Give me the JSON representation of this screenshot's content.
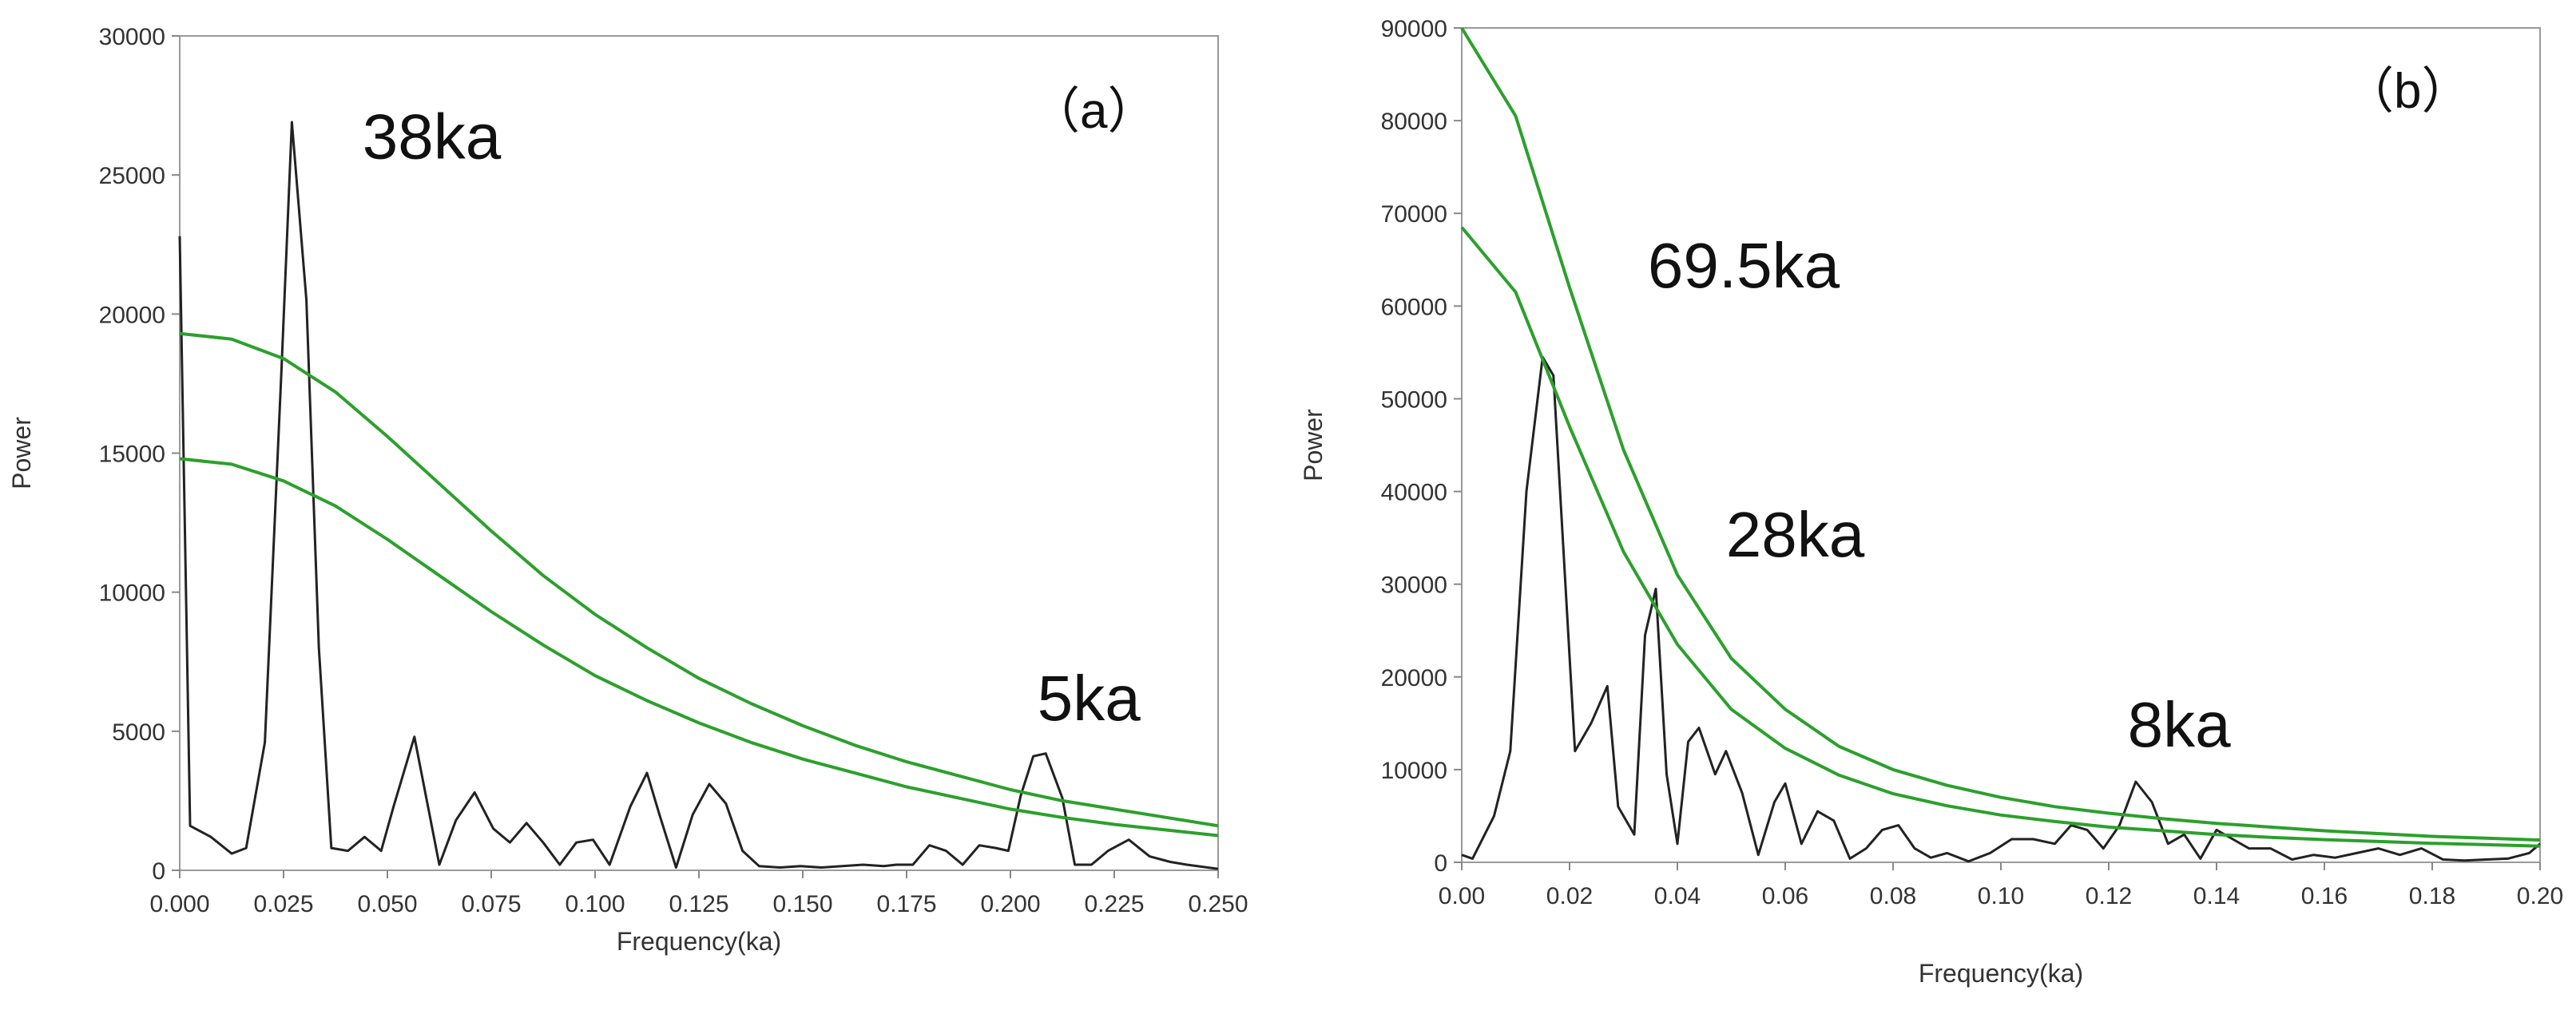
{
  "chart_data": [
    {
      "type": "line",
      "panel_label": "（a）",
      "xlabel": "Frequency(ka)",
      "ylabel": "Power",
      "xlim": [
        0,
        0.25
      ],
      "ylim": [
        0,
        30000
      ],
      "xticks": [
        "0.000",
        "0.025",
        "0.050",
        "0.075",
        "0.100",
        "0.125",
        "0.150",
        "0.175",
        "0.200",
        "0.225",
        "0.250"
      ],
      "yticks": [
        "0",
        "5000",
        "10000",
        "15000",
        "20000",
        "25000",
        "30000"
      ],
      "grid": false,
      "colors": {
        "spectrum": "#222222",
        "confidence": "#2ca02c"
      },
      "series": [
        {
          "role": "spectrum",
          "x": [
            0.0,
            0.0025,
            0.0075,
            0.0125,
            0.016,
            0.0205,
            0.0245,
            0.027,
            0.0305,
            0.0335,
            0.0365,
            0.0405,
            0.0445,
            0.0485,
            0.0515,
            0.0565,
            0.0625,
            0.0665,
            0.071,
            0.0755,
            0.0795,
            0.0835,
            0.0875,
            0.0915,
            0.0955,
            0.0995,
            0.1035,
            0.1085,
            0.1125,
            0.1155,
            0.1195,
            0.1235,
            0.1275,
            0.1315,
            0.1355,
            0.1395,
            0.1445,
            0.1495,
            0.1545,
            0.1595,
            0.1645,
            0.1695,
            0.1725,
            0.1765,
            0.1805,
            0.1845,
            0.1885,
            0.1925,
            0.1965,
            0.1995,
            0.2025,
            0.2055,
            0.2085,
            0.2125,
            0.2155,
            0.2195,
            0.2235,
            0.2285,
            0.2335,
            0.2385,
            0.2425,
            0.2475,
            0.25
          ],
          "y": [
            22800,
            1600,
            1200,
            600,
            800,
            4600,
            18000,
            26900,
            20500,
            8000,
            800,
            700,
            1200,
            700,
            2300,
            4800,
            200,
            1800,
            2800,
            1500,
            1000,
            1700,
            1000,
            200,
            1000,
            1100,
            200,
            2300,
            3500,
            2000,
            100,
            2000,
            3100,
            2400,
            700,
            150,
            100,
            150,
            100,
            150,
            200,
            150,
            200,
            200,
            900,
            700,
            200,
            900,
            800,
            700,
            2700,
            4100,
            4200,
            2600,
            200,
            200,
            700,
            1100,
            500,
            300,
            200,
            100,
            50
          ]
        },
        {
          "role": "confidence-upper",
          "x": [
            0.0,
            0.0125,
            0.025,
            0.0375,
            0.05,
            0.0625,
            0.075,
            0.0875,
            0.1,
            0.1125,
            0.125,
            0.1375,
            0.15,
            0.1625,
            0.175,
            0.1875,
            0.2,
            0.2125,
            0.225,
            0.2375,
            0.25
          ],
          "y": [
            19300,
            19100,
            18400,
            17200,
            15600,
            13900,
            12200,
            10600,
            9200,
            8000,
            6900,
            6000,
            5200,
            4500,
            3900,
            3400,
            2900,
            2500,
            2200,
            1900,
            1600
          ]
        },
        {
          "role": "confidence-lower",
          "x": [
            0.0,
            0.0125,
            0.025,
            0.0375,
            0.05,
            0.0625,
            0.075,
            0.0875,
            0.1,
            0.1125,
            0.125,
            0.1375,
            0.15,
            0.1625,
            0.175,
            0.1875,
            0.2,
            0.2125,
            0.225,
            0.2375,
            0.25
          ],
          "y": [
            14800,
            14600,
            14000,
            13100,
            11900,
            10600,
            9300,
            8100,
            7000,
            6100,
            5300,
            4600,
            4000,
            3500,
            3000,
            2600,
            2200,
            1900,
            1650,
            1450,
            1250
          ]
        }
      ],
      "annotations": [
        {
          "text": "38ka",
          "x": 0.044,
          "y": 25600
        },
        {
          "text": "5ka",
          "x": 0.2065,
          "y": 5400
        }
      ]
    },
    {
      "type": "line",
      "panel_label": "（b）",
      "xlabel": "Frequency(ka)",
      "ylabel": "Power",
      "xlim": [
        0,
        0.2
      ],
      "ylim": [
        0,
        90000
      ],
      "xticks": [
        "0.00",
        "0.02",
        "0.04",
        "0.06",
        "0.08",
        "0.10",
        "0.12",
        "0.14",
        "0.16",
        "0.18",
        "0.20"
      ],
      "yticks": [
        "0",
        "10000",
        "20000",
        "30000",
        "40000",
        "50000",
        "60000",
        "70000",
        "80000",
        "90000"
      ],
      "grid": false,
      "colors": {
        "spectrum": "#222222",
        "confidence": "#2ca02c"
      },
      "series": [
        {
          "role": "spectrum",
          "x": [
            0.0,
            0.002,
            0.006,
            0.009,
            0.012,
            0.015,
            0.017,
            0.021,
            0.024,
            0.027,
            0.029,
            0.032,
            0.034,
            0.036,
            0.038,
            0.04,
            0.042,
            0.044,
            0.047,
            0.049,
            0.052,
            0.055,
            0.058,
            0.06,
            0.063,
            0.066,
            0.069,
            0.072,
            0.075,
            0.078,
            0.081,
            0.084,
            0.087,
            0.09,
            0.094,
            0.098,
            0.102,
            0.106,
            0.11,
            0.113,
            0.116,
            0.119,
            0.122,
            0.125,
            0.128,
            0.131,
            0.134,
            0.137,
            0.14,
            0.143,
            0.146,
            0.15,
            0.154,
            0.158,
            0.162,
            0.166,
            0.17,
            0.174,
            0.178,
            0.182,
            0.186,
            0.19,
            0.194,
            0.198,
            0.2
          ],
          "y": [
            800,
            400,
            5000,
            12000,
            40000,
            54500,
            52500,
            12000,
            15000,
            19000,
            6000,
            3000,
            24500,
            29500,
            9500,
            2000,
            13000,
            14500,
            9500,
            12000,
            7500,
            800,
            6500,
            8500,
            2000,
            5500,
            4500,
            400,
            1500,
            3500,
            4000,
            1500,
            500,
            1000,
            100,
            1000,
            2500,
            2500,
            2000,
            4000,
            3500,
            1500,
            4000,
            8700,
            6500,
            2000,
            3000,
            400,
            3500,
            2500,
            1500,
            1500,
            300,
            800,
            500,
            1000,
            1500,
            800,
            1500,
            300,
            200,
            300,
            400,
            1000,
            2000
          ]
        },
        {
          "role": "confidence-upper",
          "x": [
            0.0,
            0.01,
            0.02,
            0.03,
            0.04,
            0.05,
            0.06,
            0.07,
            0.08,
            0.09,
            0.1,
            0.11,
            0.12,
            0.13,
            0.14,
            0.15,
            0.16,
            0.17,
            0.18,
            0.19,
            0.2
          ],
          "y": [
            90000,
            80500,
            62000,
            44500,
            31000,
            22000,
            16500,
            12500,
            10000,
            8300,
            7000,
            6000,
            5300,
            4700,
            4200,
            3800,
            3400,
            3100,
            2800,
            2600,
            2400
          ]
        },
        {
          "role": "confidence-lower",
          "x": [
            0.0,
            0.01,
            0.02,
            0.03,
            0.04,
            0.05,
            0.06,
            0.07,
            0.08,
            0.09,
            0.1,
            0.11,
            0.12,
            0.13,
            0.14,
            0.15,
            0.16,
            0.17,
            0.18,
            0.19,
            0.2
          ],
          "y": [
            68500,
            61500,
            47000,
            33500,
            23500,
            16500,
            12300,
            9400,
            7400,
            6100,
            5100,
            4400,
            3800,
            3400,
            3000,
            2700,
            2450,
            2250,
            2050,
            1900,
            1750
          ]
        }
      ],
      "annotations": [
        {
          "text": "69.5ka",
          "x": 0.0345,
          "y": 62000
        },
        {
          "text": "28ka",
          "x": 0.049,
          "y": 33000
        },
        {
          "text": "8ka",
          "x": 0.1235,
          "y": 12500
        }
      ]
    }
  ]
}
